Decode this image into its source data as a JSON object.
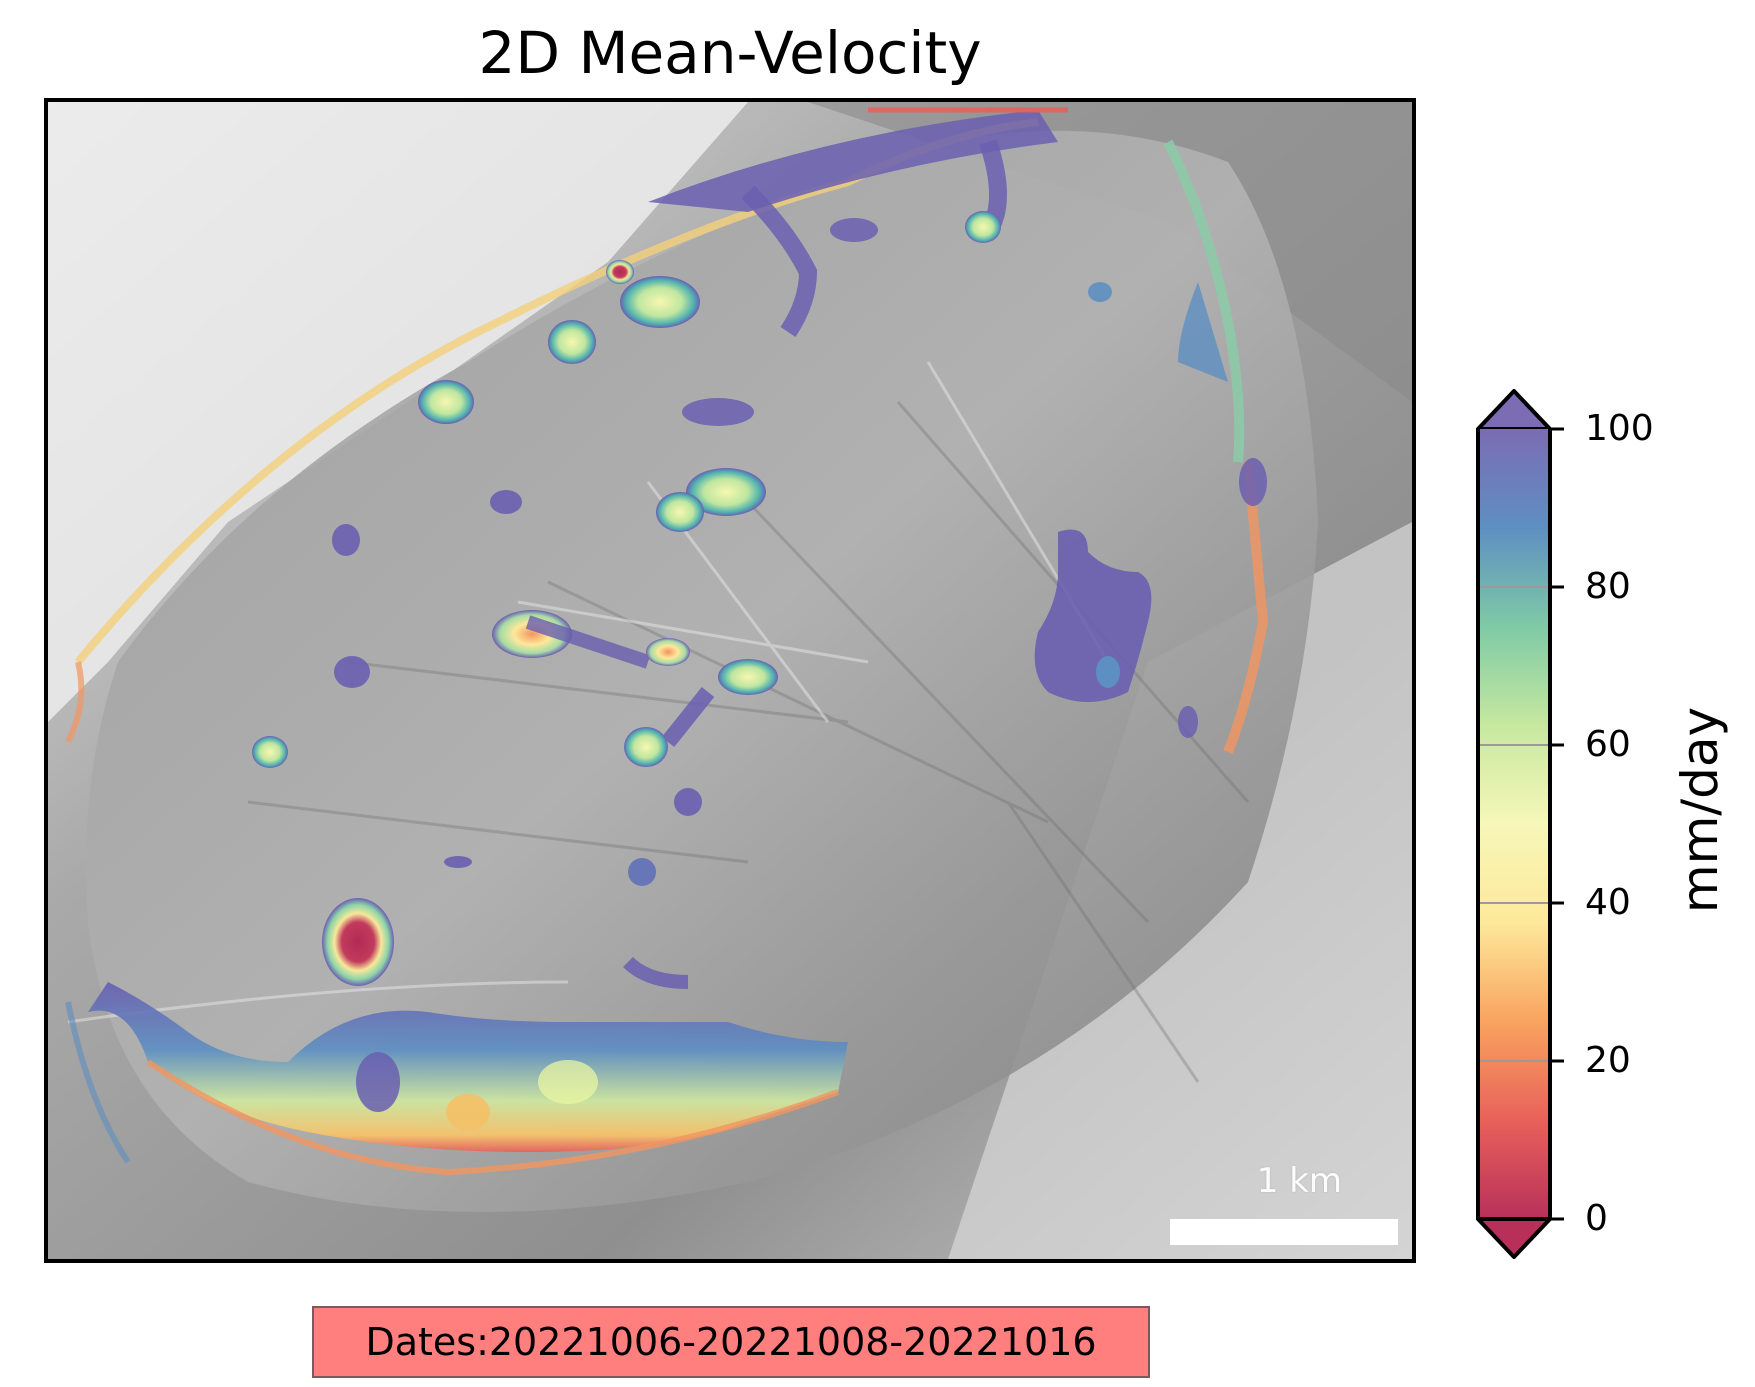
{
  "title": "2D Mean-Velocity",
  "scale_bar": {
    "label": "1 km"
  },
  "colorbar": {
    "unit": "mm/day",
    "ticks": [
      "100",
      "80",
      "60",
      "40",
      "20",
      "0"
    ],
    "colors": [
      "#b8305a",
      "#e8615a",
      "#f9a35f",
      "#fde89a",
      "#e8f5a2",
      "#a6dca5",
      "#5bb9a6",
      "#5e8fc2",
      "#7b6cb4"
    ]
  },
  "dates_label": "Dates:20221006-20221008-20221016"
}
